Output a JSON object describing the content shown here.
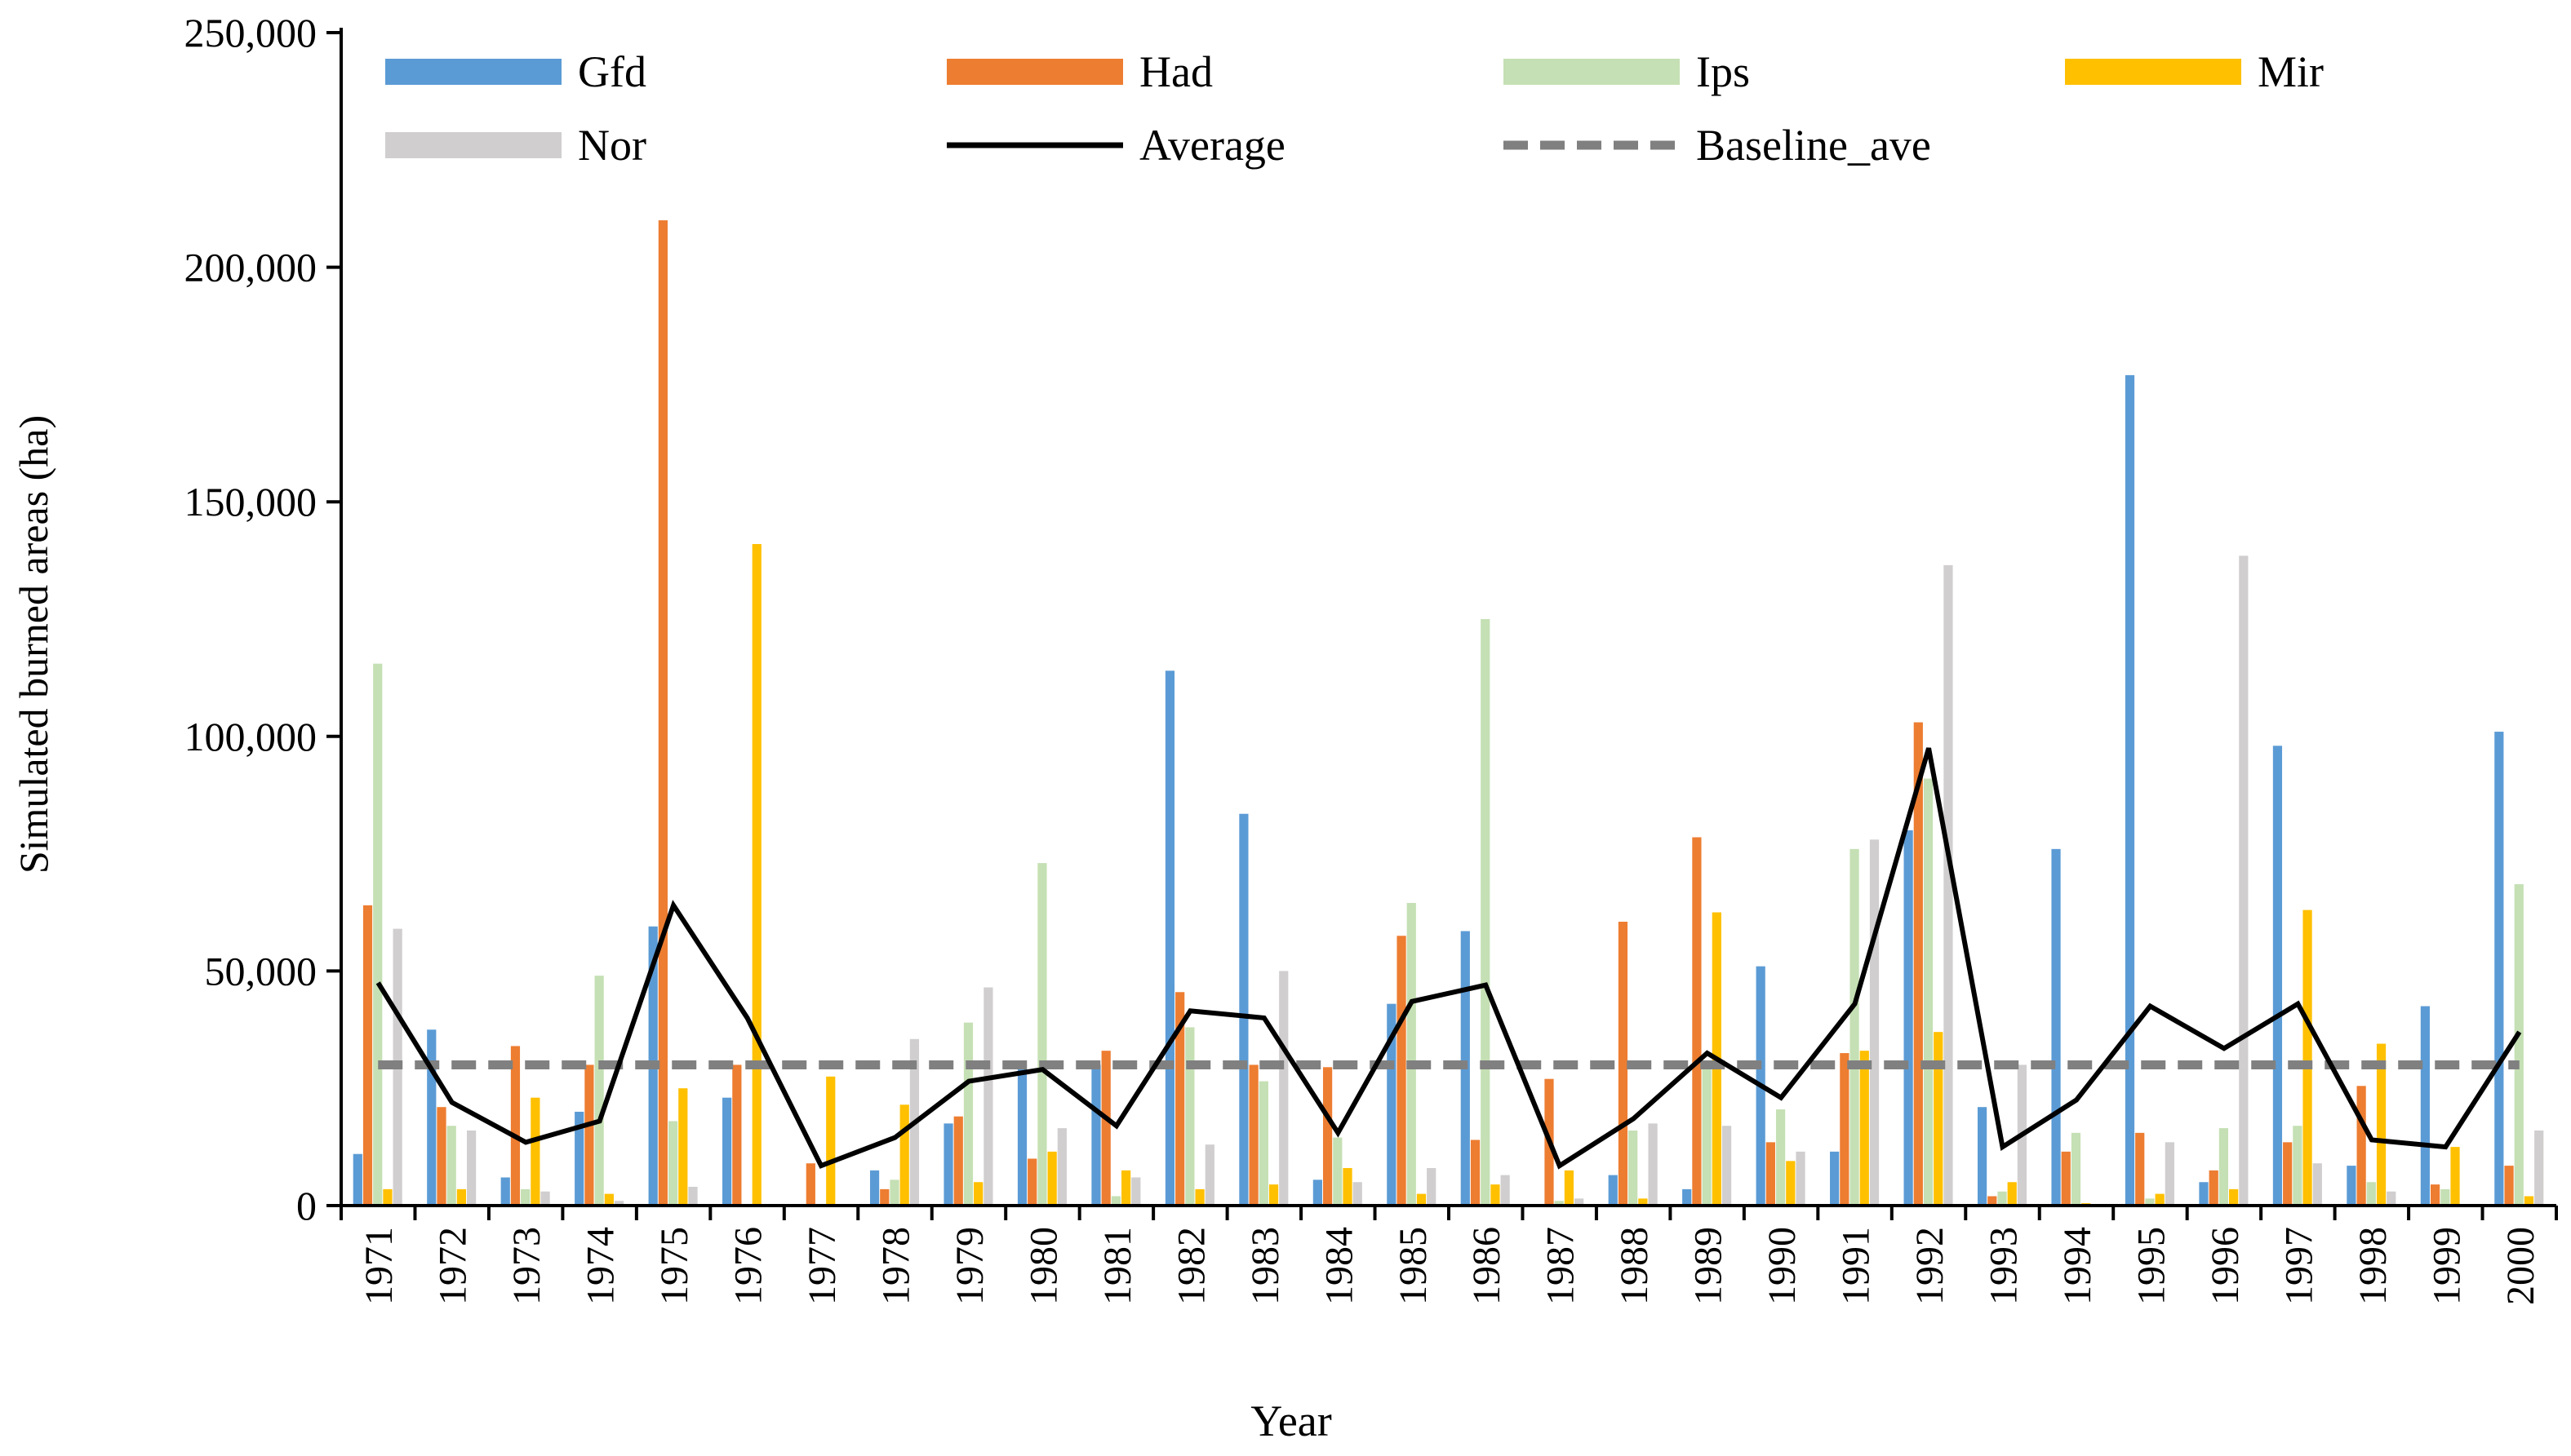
{
  "chart_data": {
    "type": "bar",
    "title": "",
    "xlabel": "Year",
    "ylabel": "Simulated burned areas (ha)",
    "ylim": [
      0,
      250000
    ],
    "yticks": [
      0,
      50000,
      100000,
      150000,
      200000,
      250000
    ],
    "ytick_labels": [
      "0",
      "50,000",
      "100,000",
      "150,000",
      "200,000",
      "250,000"
    ],
    "grid": false,
    "legend_position": "top",
    "categories": [
      "1971",
      "1972",
      "1973",
      "1974",
      "1975",
      "1976",
      "1977",
      "1978",
      "1979",
      "1980",
      "1981",
      "1982",
      "1983",
      "1984",
      "1985",
      "1986",
      "1987",
      "1988",
      "1989",
      "1990",
      "1991",
      "1992",
      "1993",
      "1994",
      "1995",
      "1996",
      "1997",
      "1998",
      "1999",
      "2000"
    ],
    "series": [
      {
        "name": "Gfd",
        "color": "#5B9BD5",
        "values": [
          11000,
          37500,
          6000,
          20000,
          59500,
          23000,
          0,
          7500,
          17500,
          30000,
          30000,
          114000,
          83500,
          5500,
          43000,
          58500,
          0,
          6500,
          3500,
          51000,
          11500,
          80000,
          21000,
          76000,
          177000,
          5000,
          98000,
          8500,
          42500,
          101000
        ]
      },
      {
        "name": "Had",
        "color": "#ED7D31",
        "values": [
          64000,
          21000,
          34000,
          30000,
          210000,
          30000,
          9000,
          3500,
          19000,
          10000,
          33000,
          45500,
          30000,
          29500,
          57500,
          14000,
          27000,
          60500,
          78500,
          13500,
          32500,
          103000,
          2000,
          11500,
          15500,
          7500,
          13500,
          25500,
          4500,
          8500
        ]
      },
      {
        "name": "Ips",
        "color": "#C5E0B4",
        "values": [
          115500,
          17000,
          3500,
          49000,
          18000,
          0,
          0,
          5500,
          39000,
          73000,
          2000,
          38000,
          26500,
          14500,
          64500,
          125000,
          1000,
          16000,
          30500,
          20500,
          76000,
          91000,
          3000,
          15500,
          1500,
          16500,
          17000,
          5000,
          3500,
          68500
        ]
      },
      {
        "name": "Mir",
        "color": "#FFC000",
        "values": [
          3500,
          3500,
          23000,
          2500,
          25000,
          141000,
          27500,
          21500,
          5000,
          11500,
          7500,
          3500,
          4500,
          8000,
          2500,
          4500,
          7500,
          1500,
          62500,
          9500,
          33000,
          37000,
          5000,
          500,
          2500,
          3500,
          63000,
          34500,
          12500,
          2000
        ]
      },
      {
        "name": "Nor",
        "color": "#D0CECE",
        "values": [
          59000,
          16000,
          3000,
          1000,
          4000,
          0,
          0,
          35500,
          46500,
          16500,
          6000,
          13000,
          50000,
          5000,
          8000,
          6500,
          1500,
          17500,
          17000,
          11500,
          78000,
          136500,
          30000,
          0,
          13500,
          138500,
          9000,
          3000,
          0,
          16000
        ]
      }
    ],
    "average": {
      "name": "Average",
      "color": "#000000",
      "values": [
        47500,
        22000,
        13500,
        18000,
        64000,
        40000,
        8500,
        14500,
        26500,
        29000,
        17000,
        41500,
        40000,
        15500,
        43500,
        47000,
        8500,
        18500,
        32500,
        23000,
        43000,
        97500,
        12500,
        22500,
        42500,
        33500,
        43000,
        14000,
        12500,
        37000
      ]
    },
    "baseline": {
      "name": "Baseline_ave",
      "color": "#808080",
      "value": 30000
    }
  }
}
